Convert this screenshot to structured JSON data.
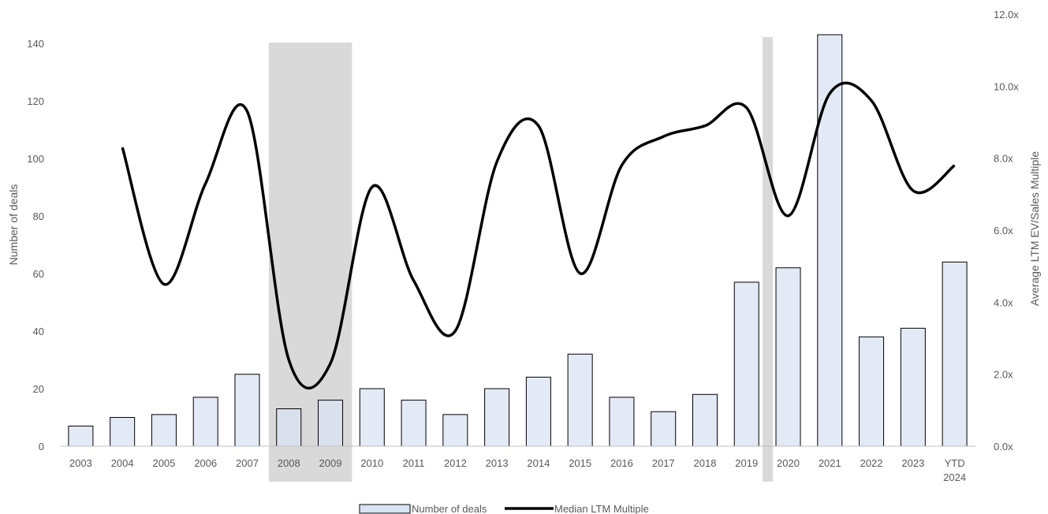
{
  "chart_data": {
    "type": "bar",
    "categories": [
      "2003",
      "2004",
      "2005",
      "2006",
      "2007",
      "2008",
      "2009",
      "2010",
      "2011",
      "2012",
      "2013",
      "2014",
      "2015",
      "2016",
      "2017",
      "2018",
      "2019",
      "2020",
      "2021",
      "2022",
      "2023",
      "YTD 2024"
    ],
    "series": [
      {
        "name": "Number of deals",
        "type": "bar",
        "axis": "left",
        "values": [
          7,
          10,
          11,
          17,
          25,
          13,
          16,
          20,
          16,
          11,
          20,
          24,
          32,
          17,
          12,
          18,
          57,
          62,
          143,
          38,
          41,
          64
        ]
      },
      {
        "name": "Median LTM Multiple",
        "type": "line",
        "axis": "right",
        "values": [
          null,
          8.3,
          4.5,
          7.3,
          9.3,
          2.4,
          2.3,
          7.2,
          4.6,
          3.2,
          7.9,
          8.9,
          4.8,
          7.8,
          8.6,
          8.9,
          9.4,
          6.4,
          9.8,
          9.6,
          7.1,
          7.8
        ]
      }
    ],
    "shaded_periods": [
      {
        "from": "2008",
        "to": "2009"
      },
      {
        "from": "2020",
        "to": "2020"
      }
    ],
    "ylabel": "Number of deals",
    "ylabel_right": "Average LTM EV/Sales Multiple",
    "ylim": [
      0,
      140
    ],
    "ylim_right": [
      0,
      12
    ],
    "yticks": [
      "0",
      "20",
      "40",
      "60",
      "80",
      "100",
      "120",
      "140"
    ],
    "yticks_right": [
      "0.0x",
      "2.0x",
      "4.0x",
      "6.0x",
      "8.0x",
      "10.0x",
      "12.0x"
    ],
    "grid": false,
    "legend_position": "bottom",
    "colors": {
      "bar_fill": "#dae3f3",
      "bar_stroke": "#000000",
      "line": "#000000",
      "shade": "#d9d9d9",
      "text": "#595959"
    }
  }
}
